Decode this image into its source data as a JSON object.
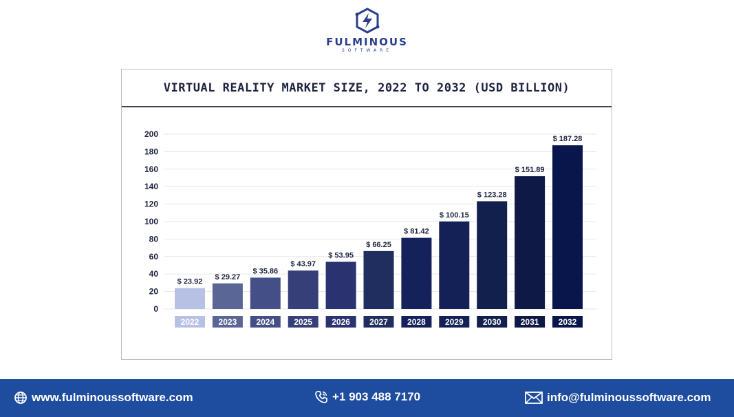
{
  "brand": {
    "name": "FULMINOUS",
    "tagline": "SOFTWARE",
    "color": "#2b3f8c"
  },
  "chart_data": {
    "type": "bar",
    "title": "VIRTUAL REALITY MARKET SIZE, 2022 TO 2032 (USD BILLION)",
    "categories": [
      "2022",
      "2023",
      "2024",
      "2025",
      "2026",
      "2027",
      "2028",
      "2029",
      "2030",
      "2031",
      "2032"
    ],
    "values": [
      23.92,
      29.27,
      35.86,
      43.97,
      53.95,
      66.25,
      81.42,
      100.15,
      123.28,
      151.89,
      187.28
    ],
    "value_labels": [
      "$ 23.92",
      "$ 29.27",
      "$ 35.86",
      "$ 43.97",
      "$ 53.95",
      "$ 66.25",
      "$ 81.42",
      "$ 100.15",
      "$ 123.28",
      "$ 151.89",
      "$ 187.28"
    ],
    "colors": [
      "#b7c1e4",
      "#5a6796",
      "#454f87",
      "#363f78",
      "#2a3270",
      "#1f2e5e",
      "#15215a",
      "#132157",
      "#12204d",
      "#0e1a45",
      "#09164b"
    ],
    "yticks": [
      0,
      20,
      40,
      60,
      80,
      100,
      120,
      140,
      160,
      180,
      200
    ],
    "ylim": [
      0,
      200
    ],
    "xlabel": "",
    "ylabel": "",
    "grid": true,
    "legend": "none"
  },
  "footer": {
    "website": "www.fulminoussoftware.com",
    "phone": "+1 903 488 7170",
    "email": "info@fulminoussoftware.com",
    "background": "#1e4c9f"
  }
}
